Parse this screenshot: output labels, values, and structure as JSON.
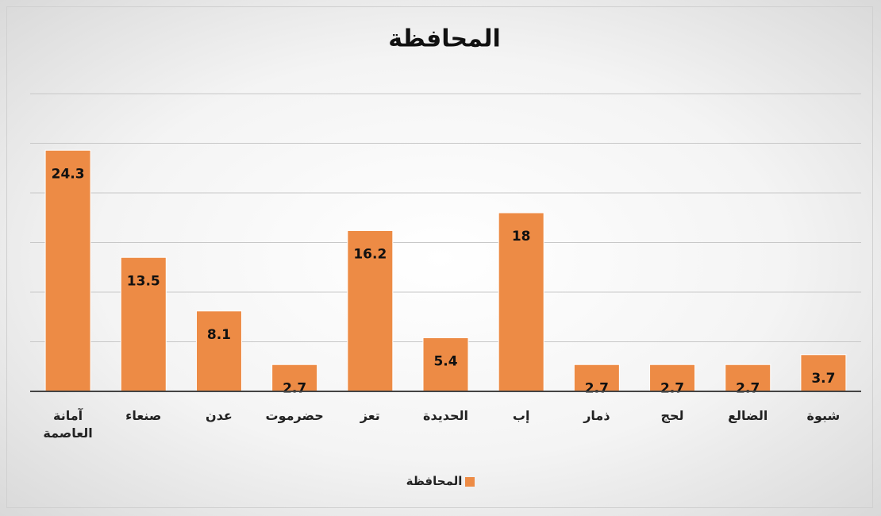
{
  "chart_data": {
    "type": "bar",
    "title": "المحافظة",
    "categories": [
      "آمانة العاصمة",
      "صنعاء",
      "عدن",
      "حضرموت",
      "تعز",
      "الحديدة",
      "إب",
      "ذمار",
      "لحج",
      "الضالع",
      "شبوة"
    ],
    "series": [
      {
        "name": "المحافظة",
        "color": "#ed8b45",
        "values": [
          24.3,
          13.5,
          8.1,
          2.7,
          16.2,
          5.4,
          18,
          2.7,
          2.7,
          2.7,
          3.7
        ]
      }
    ],
    "ylim": [
      0,
      30
    ],
    "yticks": [
      0,
      5,
      10,
      15,
      20,
      25,
      30
    ],
    "grid": true,
    "legend": "bottom"
  }
}
